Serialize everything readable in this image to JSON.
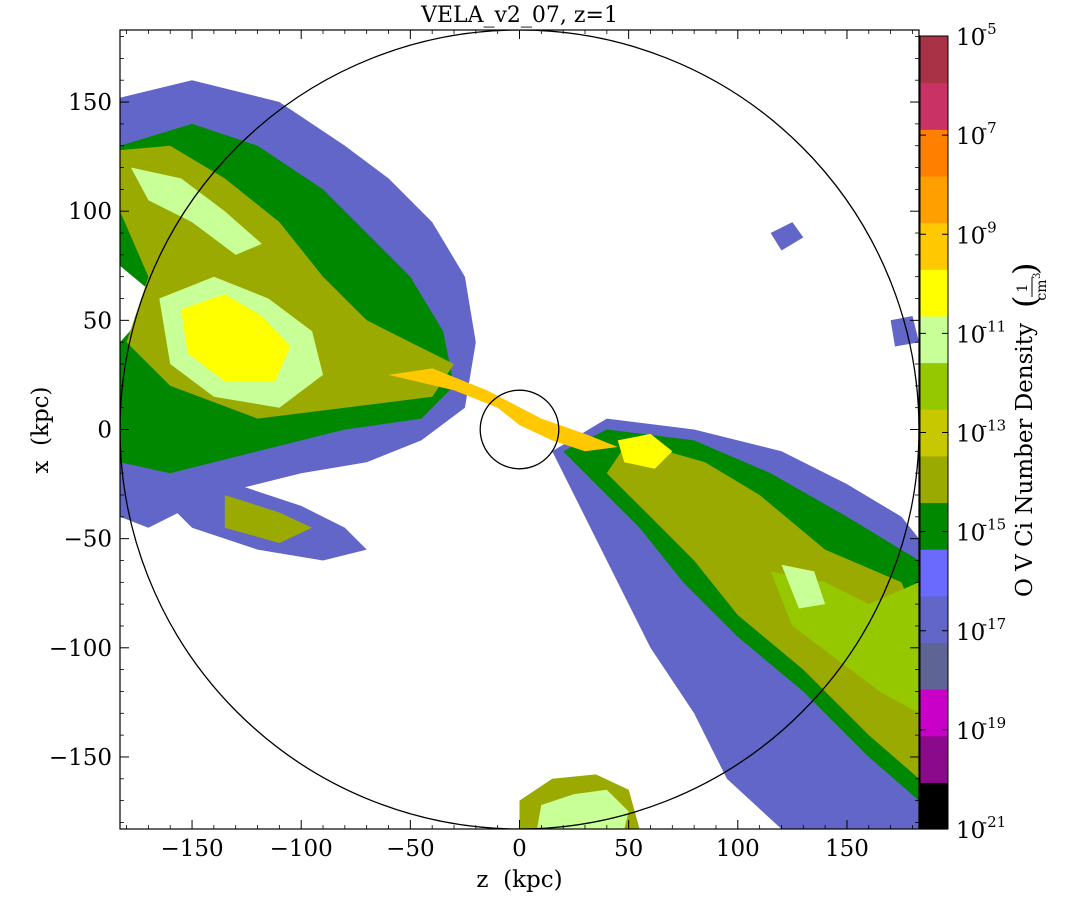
{
  "chart_data": {
    "type": "heatmap",
    "title": "VELA_v2_07, z=1",
    "xlabel": "z  (kpc)",
    "ylabel": "x  (kpc)",
    "xlim": [
      -183,
      183
    ],
    "ylim": [
      -183,
      183
    ],
    "x_ticks": [
      -150,
      -100,
      -50,
      0,
      50,
      100,
      150
    ],
    "y_ticks": [
      150,
      100,
      50,
      0,
      -50,
      -100,
      -150
    ],
    "x_tick_labels": [
      "−150",
      "−100",
      "−50",
      "0",
      "50",
      "100",
      "150"
    ],
    "y_tick_labels": [
      "150",
      "100",
      "50",
      "0",
      "−50",
      "−100",
      "−150"
    ],
    "grid": false,
    "circles": [
      {
        "center": [
          0,
          0
        ],
        "radius": 183
      },
      {
        "center": [
          0,
          0
        ],
        "radius": 18
      }
    ],
    "colorbar": {
      "label": "O V Ci Number Density",
      "unit_numerator": "1",
      "unit_denominator": "cm",
      "unit_exponent": "3",
      "log_min": -21,
      "log_max": -5,
      "tick_base": "10",
      "tick_exponents": [
        "-5",
        "-7",
        "-9",
        "-11",
        "-13",
        "-15",
        "-17",
        "-19",
        "-21"
      ],
      "tick_log_values": [
        -5,
        -7,
        -9,
        -11,
        -13,
        -15,
        -17,
        -19,
        -21
      ],
      "band_colors": [
        "#000000",
        "#8b0a8b",
        "#c800c8",
        "#5e6494",
        "#6166c8",
        "#6a6aff",
        "#008800",
        "#9aaa00",
        "#c8c800",
        "#96c800",
        "#c8ff96",
        "#ffff00",
        "#ffc800",
        "#ffa000",
        "#ff8000",
        "#c83264",
        "#aa3246"
      ]
    },
    "regions": [
      {
        "name": "upper-left-outflow-outer",
        "level": -17,
        "points": [
          [
            -183,
            152
          ],
          [
            -150,
            160
          ],
          [
            -110,
            150
          ],
          [
            -80,
            130
          ],
          [
            -60,
            115
          ],
          [
            -40,
            95
          ],
          [
            -25,
            70
          ],
          [
            -20,
            40
          ],
          [
            -25,
            10
          ],
          [
            -45,
            -5
          ],
          [
            -70,
            -15
          ],
          [
            -100,
            -20
          ],
          [
            -140,
            -30
          ],
          [
            -170,
            -45
          ],
          [
            -183,
            -40
          ],
          [
            -183,
            30
          ],
          [
            -170,
            60
          ],
          [
            -160,
            80
          ],
          [
            -183,
            90
          ]
        ]
      },
      {
        "name": "upper-left-outflow-green",
        "level": -15,
        "points": [
          [
            -183,
            130
          ],
          [
            -150,
            140
          ],
          [
            -120,
            130
          ],
          [
            -90,
            110
          ],
          [
            -70,
            90
          ],
          [
            -50,
            70
          ],
          [
            -35,
            45
          ],
          [
            -30,
            20
          ],
          [
            -45,
            5
          ],
          [
            -80,
            0
          ],
          [
            -120,
            -10
          ],
          [
            -160,
            -20
          ],
          [
            -183,
            -15
          ],
          [
            -183,
            40
          ],
          [
            -165,
            60
          ],
          [
            -183,
            75
          ]
        ]
      },
      {
        "name": "upper-left-filament-olive",
        "level": -14,
        "points": [
          [
            -183,
            128
          ],
          [
            -160,
            130
          ],
          [
            -135,
            115
          ],
          [
            -110,
            95
          ],
          [
            -90,
            70
          ],
          [
            -70,
            50
          ],
          [
            -50,
            40
          ],
          [
            -30,
            30
          ],
          [
            -40,
            15
          ],
          [
            -80,
            10
          ],
          [
            -120,
            5
          ],
          [
            -160,
            20
          ],
          [
            -180,
            40
          ],
          [
            -170,
            70
          ],
          [
            -183,
            100
          ]
        ]
      },
      {
        "name": "upper-left-knots-yellow",
        "level": -11,
        "points": [
          [
            -178,
            120
          ],
          [
            -155,
            115
          ],
          [
            -135,
            100
          ],
          [
            -118,
            85
          ],
          [
            -130,
            80
          ],
          [
            -150,
            95
          ],
          [
            -170,
            105
          ]
        ]
      },
      {
        "name": "left-blob-yellow",
        "level": -11,
        "points": [
          [
            -165,
            60
          ],
          [
            -140,
            70
          ],
          [
            -115,
            60
          ],
          [
            -95,
            45
          ],
          [
            -90,
            25
          ],
          [
            -110,
            10
          ],
          [
            -140,
            15
          ],
          [
            -160,
            30
          ]
        ]
      },
      {
        "name": "left-blob-white-core",
        "level": -10,
        "points": [
          [
            -155,
            55
          ],
          [
            -135,
            62
          ],
          [
            -118,
            52
          ],
          [
            -105,
            38
          ],
          [
            -112,
            22
          ],
          [
            -135,
            22
          ],
          [
            -152,
            35
          ]
        ]
      },
      {
        "name": "lower-left-arm-outer",
        "level": -17,
        "points": [
          [
            -160,
            -20
          ],
          [
            -130,
            -25
          ],
          [
            -100,
            -35
          ],
          [
            -80,
            -45
          ],
          [
            -70,
            -55
          ],
          [
            -90,
            -60
          ],
          [
            -120,
            -55
          ],
          [
            -150,
            -45
          ],
          [
            -160,
            -35
          ]
        ]
      },
      {
        "name": "lower-left-arm-olive",
        "level": -14,
        "points": [
          [
            -135,
            -30
          ],
          [
            -110,
            -38
          ],
          [
            -95,
            -45
          ],
          [
            -110,
            -52
          ],
          [
            -135,
            -45
          ]
        ]
      },
      {
        "name": "right-outflow-outer",
        "level": -17,
        "points": [
          [
            40,
            5
          ],
          [
            80,
            0
          ],
          [
            120,
            -10
          ],
          [
            150,
            -25
          ],
          [
            175,
            -40
          ],
          [
            183,
            -50
          ],
          [
            183,
            -183
          ],
          [
            120,
            -183
          ],
          [
            95,
            -160
          ],
          [
            80,
            -130
          ],
          [
            60,
            -100
          ],
          [
            40,
            -60
          ],
          [
            25,
            -30
          ],
          [
            15,
            -10
          ]
        ]
      },
      {
        "name": "right-outflow-green",
        "level": -15,
        "points": [
          [
            40,
            0
          ],
          [
            80,
            -5
          ],
          [
            115,
            -20
          ],
          [
            150,
            -40
          ],
          [
            183,
            -60
          ],
          [
            183,
            -170
          ],
          [
            160,
            -150
          ],
          [
            130,
            -120
          ],
          [
            100,
            -95
          ],
          [
            75,
            -70
          ],
          [
            55,
            -45
          ],
          [
            35,
            -25
          ],
          [
            20,
            -10
          ]
        ]
      },
      {
        "name": "right-outflow-olive",
        "level": -14,
        "points": [
          [
            50,
            -5
          ],
          [
            85,
            -15
          ],
          [
            110,
            -30
          ],
          [
            140,
            -55
          ],
          [
            175,
            -70
          ],
          [
            183,
            -90
          ],
          [
            183,
            -160
          ],
          [
            160,
            -140
          ],
          [
            130,
            -110
          ],
          [
            100,
            -85
          ],
          [
            80,
            -60
          ],
          [
            60,
            -40
          ],
          [
            40,
            -20
          ]
        ]
      },
      {
        "name": "right-outflow-lightgreen",
        "level": -12,
        "points": [
          [
            115,
            -65
          ],
          [
            140,
            -70
          ],
          [
            160,
            -80
          ],
          [
            183,
            -70
          ],
          [
            183,
            -130
          ],
          [
            165,
            -120
          ],
          [
            145,
            -105
          ],
          [
            125,
            -90
          ]
        ]
      },
      {
        "name": "right-outflow-yellow",
        "level": -11,
        "points": [
          [
            120,
            -62
          ],
          [
            135,
            -65
          ],
          [
            140,
            -80
          ],
          [
            128,
            -82
          ]
        ]
      },
      {
        "name": "right-inner-white",
        "level": -10,
        "points": [
          [
            45,
            -5
          ],
          [
            60,
            -2
          ],
          [
            70,
            -10
          ],
          [
            62,
            -18
          ],
          [
            48,
            -15
          ]
        ]
      },
      {
        "name": "bottom-blob-olive",
        "level": -14,
        "points": [
          [
            0,
            -183
          ],
          [
            0,
            -170
          ],
          [
            15,
            -160
          ],
          [
            35,
            -158
          ],
          [
            50,
            -165
          ],
          [
            55,
            -183
          ]
        ]
      },
      {
        "name": "bottom-blob-yellow",
        "level": -11,
        "points": [
          [
            8,
            -183
          ],
          [
            10,
            -172
          ],
          [
            25,
            -167
          ],
          [
            40,
            -165
          ],
          [
            50,
            -175
          ],
          [
            48,
            -183
          ]
        ]
      },
      {
        "name": "center-stream-orange",
        "level": -9,
        "points": [
          [
            -60,
            25
          ],
          [
            -30,
            18
          ],
          [
            -10,
            10
          ],
          [
            0,
            2
          ],
          [
            15,
            -5
          ],
          [
            30,
            -10
          ],
          [
            45,
            -8
          ],
          [
            30,
            -2
          ],
          [
            10,
            5
          ],
          [
            -15,
            18
          ],
          [
            -40,
            28
          ]
        ]
      },
      {
        "name": "isolated-cloud-right-upper",
        "level": -17,
        "points": [
          [
            115,
            90
          ],
          [
            125,
            95
          ],
          [
            130,
            88
          ],
          [
            120,
            82
          ]
        ]
      },
      {
        "name": "isolated-cloud-right-mid",
        "level": -17,
        "points": [
          [
            170,
            50
          ],
          [
            180,
            52
          ],
          [
            183,
            40
          ],
          [
            172,
            38
          ]
        ]
      }
    ]
  }
}
